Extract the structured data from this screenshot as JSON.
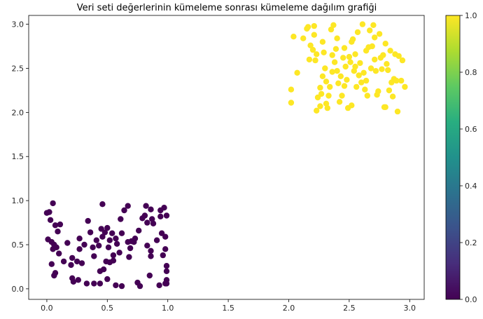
{
  "chart_data": {
    "type": "scatter",
    "title": "Veri seti değerlerinin kümeleme sonrası kümeleme dağılım grafiği",
    "xlabel": "",
    "ylabel": "",
    "xlim": [
      -0.15,
      3.12
    ],
    "ylim": [
      -0.12,
      3.1
    ],
    "xticks": [
      0.0,
      0.5,
      1.0,
      1.5,
      2.0,
      2.5,
      3.0
    ],
    "xtick_labels": [
      "0.0",
      "0.5",
      "1.0",
      "1.5",
      "2.0",
      "2.5",
      "3.0"
    ],
    "yticks": [
      0.0,
      0.5,
      1.0,
      1.5,
      2.0,
      2.5,
      3.0
    ],
    "ytick_labels": [
      "0.0",
      "0.5",
      "1.0",
      "1.5",
      "2.0",
      "2.5",
      "3.0"
    ],
    "grid": false,
    "colormap": "viridis",
    "colorbar": {
      "range": [
        0.0,
        1.0
      ],
      "ticks": [
        0.0,
        0.2,
        0.4,
        0.6,
        0.8,
        1.0
      ],
      "tick_labels": [
        "0.0",
        "0.2",
        "0.4",
        "0.6",
        "0.8",
        "1.0"
      ]
    },
    "series": [
      {
        "cluster_value": 0,
        "color": "#440154",
        "points": [
          [
            0.0,
            0.86
          ],
          [
            0.02,
            0.87
          ],
          [
            0.05,
            0.97
          ],
          [
            0.03,
            0.78
          ],
          [
            0.07,
            0.72
          ],
          [
            0.11,
            0.73
          ],
          [
            0.09,
            0.65
          ],
          [
            0.01,
            0.56
          ],
          [
            0.04,
            0.53
          ],
          [
            0.06,
            0.5
          ],
          [
            0.05,
            0.45
          ],
          [
            0.08,
            0.47
          ],
          [
            0.1,
            0.4
          ],
          [
            0.04,
            0.28
          ],
          [
            0.07,
            0.18
          ],
          [
            0.06,
            0.15
          ],
          [
            0.14,
            0.31
          ],
          [
            0.17,
            0.52
          ],
          [
            0.2,
            0.27
          ],
          [
            0.21,
            0.35
          ],
          [
            0.21,
            0.12
          ],
          [
            0.22,
            0.08
          ],
          [
            0.26,
            0.1
          ],
          [
            0.25,
            0.31
          ],
          [
            0.27,
            0.45
          ],
          [
            0.27,
            0.57
          ],
          [
            0.29,
            0.29
          ],
          [
            0.31,
            0.5
          ],
          [
            0.33,
            0.06
          ],
          [
            0.34,
            0.77
          ],
          [
            0.36,
            0.64
          ],
          [
            0.38,
            0.47
          ],
          [
            0.39,
            0.37
          ],
          [
            0.39,
            0.06
          ],
          [
            0.41,
            0.55
          ],
          [
            0.43,
            0.49
          ],
          [
            0.44,
            0.06
          ],
          [
            0.44,
            0.2
          ],
          [
            0.45,
            0.68
          ],
          [
            0.46,
            0.96
          ],
          [
            0.46,
            0.59
          ],
          [
            0.47,
            0.22
          ],
          [
            0.48,
            0.64
          ],
          [
            0.49,
            0.31
          ],
          [
            0.5,
            0.11
          ],
          [
            0.5,
            0.69
          ],
          [
            0.51,
            0.47
          ],
          [
            0.52,
            0.55
          ],
          [
            0.52,
            0.3
          ],
          [
            0.54,
            0.63
          ],
          [
            0.55,
            0.32
          ],
          [
            0.55,
            0.38
          ],
          [
            0.57,
            0.57
          ],
          [
            0.57,
            0.04
          ],
          [
            0.58,
            0.51
          ],
          [
            0.6,
            0.41
          ],
          [
            0.61,
            0.79
          ],
          [
            0.62,
            0.03
          ],
          [
            0.62,
            0.63
          ],
          [
            0.64,
            0.89
          ],
          [
            0.67,
            0.94
          ],
          [
            0.67,
            0.53
          ],
          [
            0.68,
            0.36
          ],
          [
            0.69,
            0.46
          ],
          [
            0.7,
            0.54
          ],
          [
            0.72,
            0.53
          ],
          [
            0.73,
            0.57
          ],
          [
            0.75,
            0.07
          ],
          [
            0.76,
            0.66
          ],
          [
            0.77,
            0.03
          ],
          [
            0.79,
            0.8
          ],
          [
            0.81,
            0.83
          ],
          [
            0.82,
            0.94
          ],
          [
            0.83,
            0.75
          ],
          [
            0.83,
            0.49
          ],
          [
            0.85,
            0.15
          ],
          [
            0.86,
            0.43
          ],
          [
            0.86,
            0.37
          ],
          [
            0.86,
            0.9
          ],
          [
            0.87,
            0.79
          ],
          [
            0.88,
            0.74
          ],
          [
            0.91,
            0.55
          ],
          [
            0.93,
            0.04
          ],
          [
            0.94,
            0.89
          ],
          [
            0.94,
            0.82
          ],
          [
            0.95,
            0.63
          ],
          [
            0.96,
            0.38
          ],
          [
            0.97,
            0.92
          ],
          [
            0.98,
            0.59
          ],
          [
            0.98,
            0.45
          ],
          [
            0.99,
            0.26
          ],
          [
            0.99,
            0.2
          ],
          [
            0.99,
            0.1
          ],
          [
            0.99,
            0.06
          ],
          [
            0.99,
            0.83
          ],
          [
            0.98,
            0.06
          ]
        ]
      },
      {
        "cluster_value": 1,
        "color": "#fde725",
        "points": [
          [
            2.02,
            2.11
          ],
          [
            2.02,
            2.26
          ],
          [
            2.04,
            2.86
          ],
          [
            2.07,
            2.45
          ],
          [
            2.12,
            2.84
          ],
          [
            2.15,
            2.95
          ],
          [
            2.16,
            2.97
          ],
          [
            2.18,
            2.76
          ],
          [
            2.2,
            2.71
          ],
          [
            2.21,
            2.98
          ],
          [
            2.21,
            2.88
          ],
          [
            2.22,
            2.59
          ],
          [
            2.23,
            2.66
          ],
          [
            2.23,
            2.02
          ],
          [
            2.24,
            2.17
          ],
          [
            2.26,
            2.07
          ],
          [
            2.26,
            2.28
          ],
          [
            2.27,
            2.21
          ],
          [
            2.28,
            2.8
          ],
          [
            2.29,
            2.68
          ],
          [
            2.3,
            2.5
          ],
          [
            2.31,
            2.35
          ],
          [
            2.31,
            2.1
          ],
          [
            2.32,
            2.05
          ],
          [
            2.33,
            2.19
          ],
          [
            2.34,
            2.29
          ],
          [
            2.35,
            2.94
          ],
          [
            2.36,
            2.65
          ],
          [
            2.37,
            2.99
          ],
          [
            2.38,
            2.57
          ],
          [
            2.39,
            2.72
          ],
          [
            2.4,
            2.47
          ],
          [
            2.41,
            2.33
          ],
          [
            2.42,
            2.12
          ],
          [
            2.43,
            2.41
          ],
          [
            2.44,
            2.19
          ],
          [
            2.45,
            2.62
          ],
          [
            2.46,
            2.73
          ],
          [
            2.47,
            2.52
          ],
          [
            2.48,
            2.37
          ],
          [
            2.49,
            2.05
          ],
          [
            2.5,
            2.63
          ],
          [
            2.51,
            2.57
          ],
          [
            2.52,
            2.8
          ],
          [
            2.53,
            2.83
          ],
          [
            2.54,
            2.47
          ],
          [
            2.55,
            2.66
          ],
          [
            2.56,
            2.29
          ],
          [
            2.57,
            2.91
          ],
          [
            2.58,
            2.42
          ],
          [
            2.59,
            2.56
          ],
          [
            2.6,
            2.34
          ],
          [
            2.61,
            3.0
          ],
          [
            2.62,
            2.45
          ],
          [
            2.63,
            2.26
          ],
          [
            2.64,
            2.7
          ],
          [
            2.65,
            2.19
          ],
          [
            2.66,
            2.74
          ],
          [
            2.67,
            2.93
          ],
          [
            2.68,
            2.5
          ],
          [
            2.69,
            2.75
          ],
          [
            2.7,
            2.99
          ],
          [
            2.71,
            2.6
          ],
          [
            2.72,
            2.47
          ],
          [
            2.73,
            2.2
          ],
          [
            2.74,
            2.24
          ],
          [
            2.75,
            2.89
          ],
          [
            2.76,
            2.62
          ],
          [
            2.77,
            2.49
          ],
          [
            2.78,
            2.65
          ],
          [
            2.79,
            2.06
          ],
          [
            2.8,
            2.78
          ],
          [
            2.81,
            2.55
          ],
          [
            2.82,
            2.48
          ],
          [
            2.83,
            2.25
          ],
          [
            2.84,
            2.7
          ],
          [
            2.85,
            2.34
          ],
          [
            2.86,
            2.18
          ],
          [
            2.87,
            2.38
          ],
          [
            2.88,
            2.66
          ],
          [
            2.89,
            2.36
          ],
          [
            2.9,
            2.01
          ],
          [
            2.91,
            2.64
          ],
          [
            2.93,
            2.36
          ],
          [
            2.94,
            2.59
          ],
          [
            2.96,
            2.29
          ],
          [
            2.28,
            2.41
          ],
          [
            2.4,
            2.84
          ],
          [
            2.52,
            2.08
          ],
          [
            2.64,
            2.36
          ],
          [
            2.71,
            2.85
          ],
          [
            2.17,
            2.6
          ],
          [
            2.46,
            2.3
          ],
          [
            2.55,
            2.52
          ],
          [
            2.8,
            2.06
          ],
          [
            2.36,
            2.46
          ]
        ]
      }
    ]
  }
}
